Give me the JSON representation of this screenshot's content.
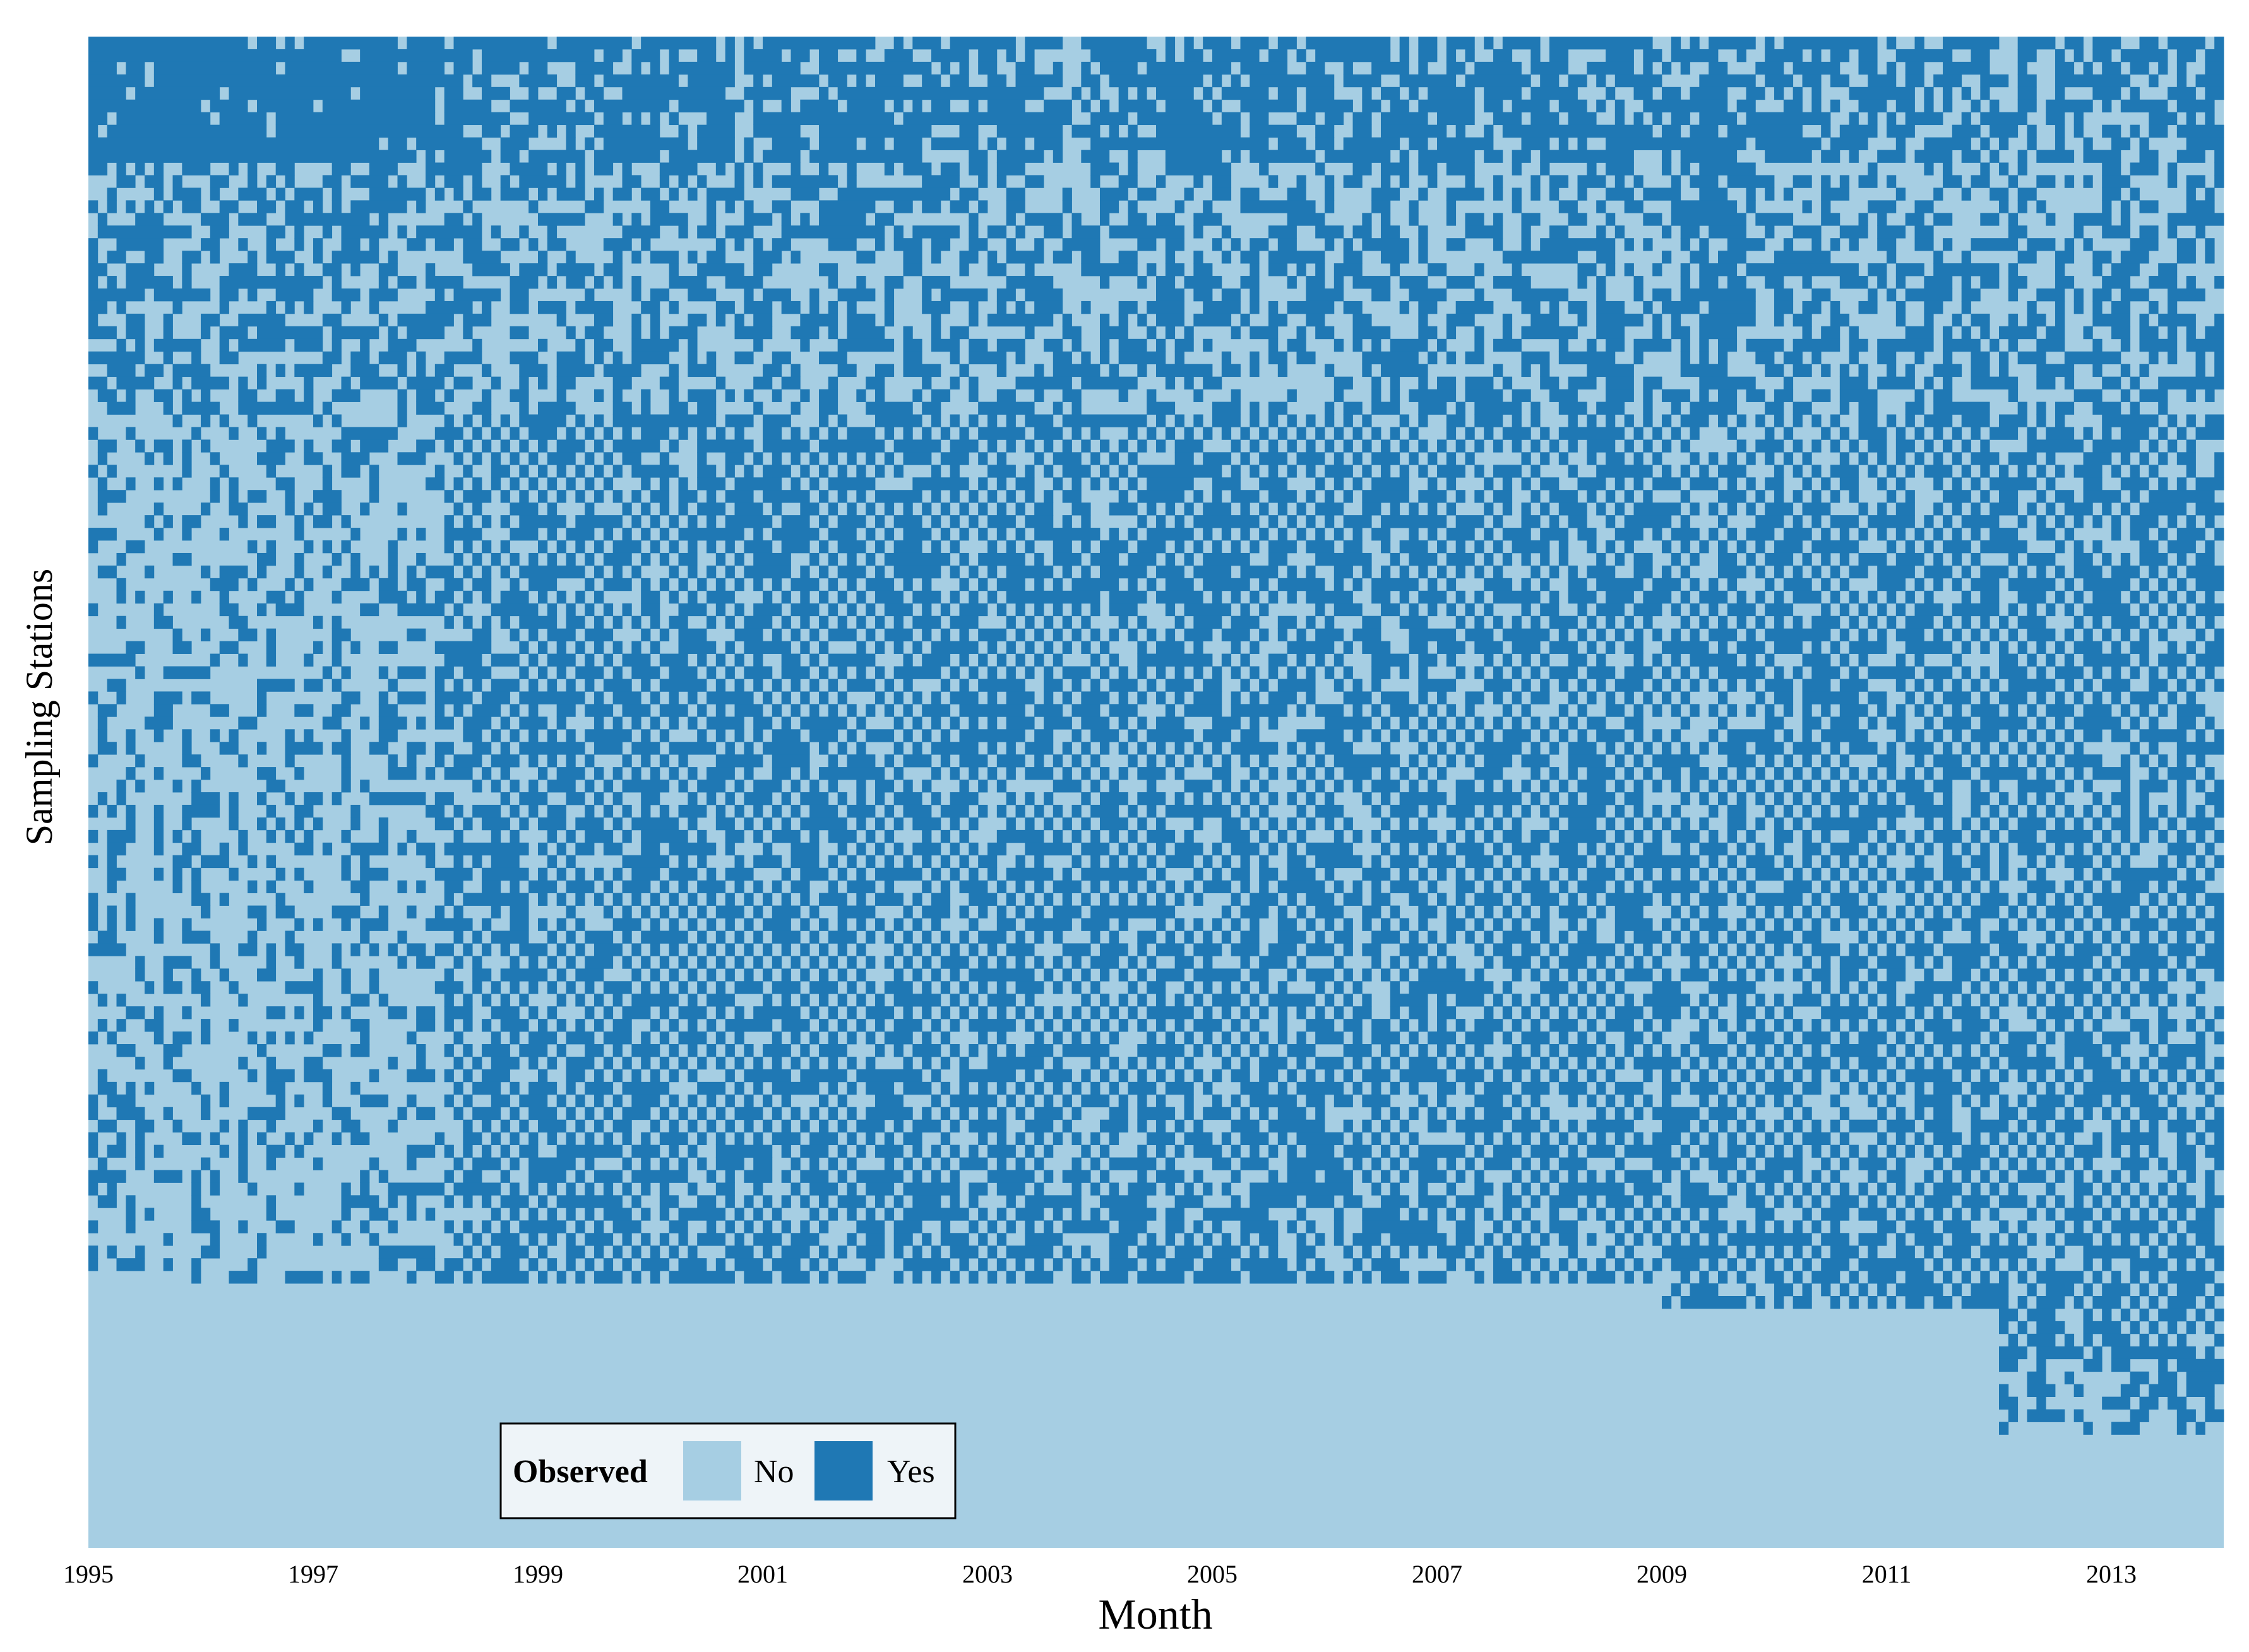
{
  "chart_data": {
    "type": "heatmap",
    "title": "",
    "xlabel": "Month",
    "ylabel": "Sampling Stations",
    "x_range": [
      "1995-01",
      "2013-12"
    ],
    "x_ticks": [
      "1995",
      "1997",
      "1999",
      "2001",
      "2003",
      "2005",
      "2007",
      "2009",
      "2011",
      "2013"
    ],
    "y_tick_labels_shown": false,
    "grid": false,
    "values_note": "Each cell = one station in one month; value Yes/No indicates whether the station was observed.",
    "legend": {
      "title": "Observed",
      "placement": "bottom-left inside plot",
      "entries": [
        {
          "label": "No",
          "color": "#a6cee3"
        },
        {
          "label": "Yes",
          "color": "#1f78b4"
        }
      ]
    },
    "colors": {
      "no": "#a6cee3",
      "yes": "#1f78b4"
    }
  }
}
